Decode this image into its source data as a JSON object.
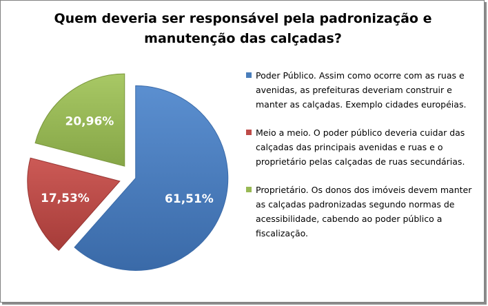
{
  "chart_data": {
    "type": "pie",
    "title_lines": [
      "Quem deveria ser responsável pela padronização e",
      "manutenção das calçadas?"
    ],
    "slices": [
      {
        "label": "Poder Público. Assim como ocorre com as ruas e avenidas, as prefeituras deveriam construir e manter as calçadas. Exemplo cidades européias.",
        "value": 61.51,
        "display": "61,51%",
        "color": "#4a7ebb"
      },
      {
        "label": "Meio a meio. O poder público deveria cuidar das calçadas das principais avenidas e ruas e o proprietário pelas calçadas de ruas secundárias.",
        "value": 17.53,
        "display": "17,53%",
        "color": "#be4b48"
      },
      {
        "label": "Proprietário. Os donos dos imóveis devem manter as calçadas padronizadas segundo normas de acessibilidade, cabendo ao poder público a fiscalização.",
        "value": 20.96,
        "display": "20,96%",
        "color": "#98b954"
      }
    ],
    "legend_position": "right"
  }
}
